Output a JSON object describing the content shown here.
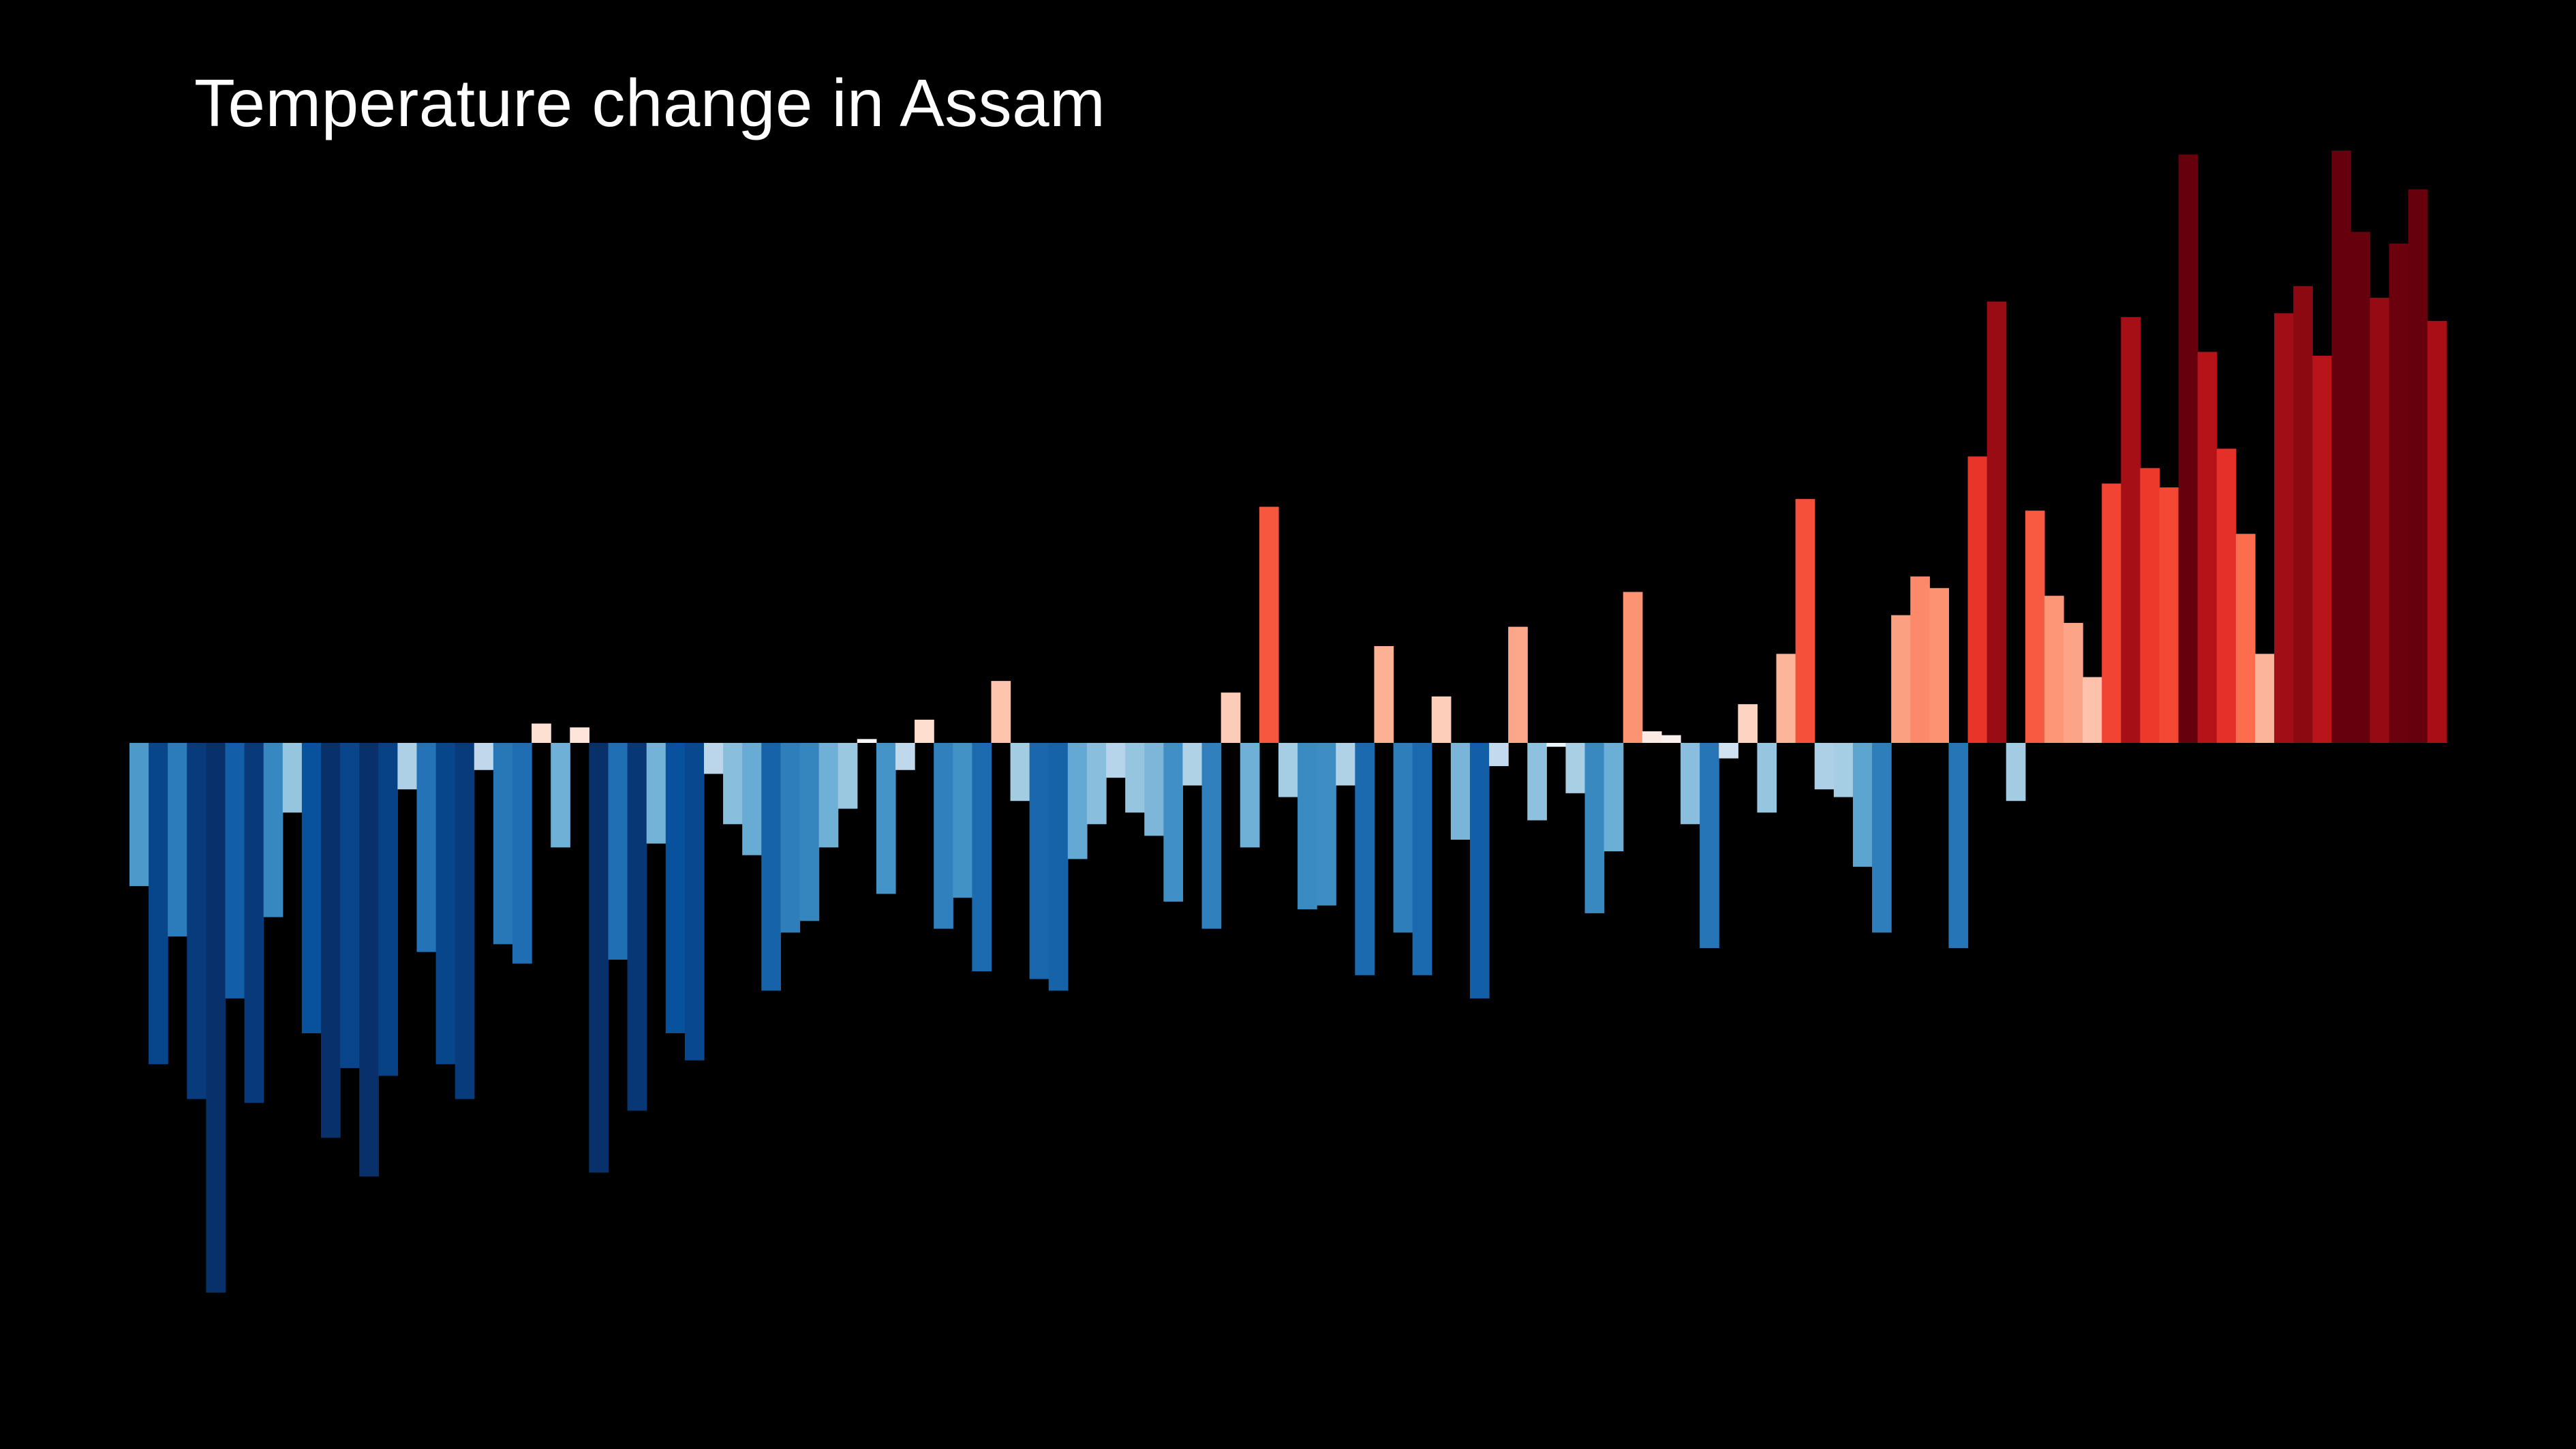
{
  "chart_data": {
    "type": "bar",
    "title": "Temperature change in Assam",
    "xlabel": "",
    "ylabel": "",
    "baseline": 0,
    "ylim": [
      -1.4,
      1.5
    ],
    "grid": false,
    "legend": "none",
    "background": "#000000",
    "values": [
      -0.37,
      -0.83,
      -0.5,
      -0.92,
      -1.42,
      -0.66,
      -0.93,
      -0.45,
      -0.18,
      -0.75,
      -1.02,
      -0.84,
      -1.12,
      -0.86,
      -0.12,
      -0.54,
      -0.83,
      -0.92,
      -0.07,
      -0.52,
      -0.57,
      0.05,
      -0.27,
      0.04,
      -1.11,
      -0.56,
      -0.95,
      -0.26,
      -0.75,
      -0.82,
      -0.08,
      -0.21,
      -0.29,
      -0.64,
      -0.49,
      -0.46,
      -0.27,
      -0.17,
      0.01,
      -0.39,
      -0.07,
      0.06,
      -0.48,
      -0.4,
      -0.59,
      0.16,
      -0.15,
      -0.61,
      -0.64,
      -0.3,
      -0.21,
      -0.09,
      -0.18,
      -0.24,
      -0.41,
      -0.11,
      -0.48,
      0.13,
      -0.27,
      0.61,
      -0.14,
      -0.43,
      -0.42,
      -0.11,
      -0.6,
      0.25,
      -0.49,
      -0.6,
      0.12,
      -0.25,
      -0.66,
      -0.06,
      0.3,
      -0.2,
      -0.01,
      -0.13,
      -0.44,
      -0.28,
      0.39,
      0.03,
      0.02,
      -0.21,
      -0.53,
      -0.04,
      0.1,
      -0.18,
      0.23,
      0.63,
      -0.12,
      -0.14,
      -0.32,
      -0.49,
      0.33,
      0.43,
      0.4,
      -0.53,
      0.74,
      1.14,
      -0.15,
      0.6,
      0.38,
      0.31,
      0.17,
      0.67,
      1.1,
      0.71,
      0.66,
      1.52,
      1.01,
      0.76,
      0.54,
      0.23,
      1.11,
      1.18,
      1.0,
      1.53,
      1.32,
      1.15,
      1.29,
      1.43,
      1.09
    ]
  }
}
